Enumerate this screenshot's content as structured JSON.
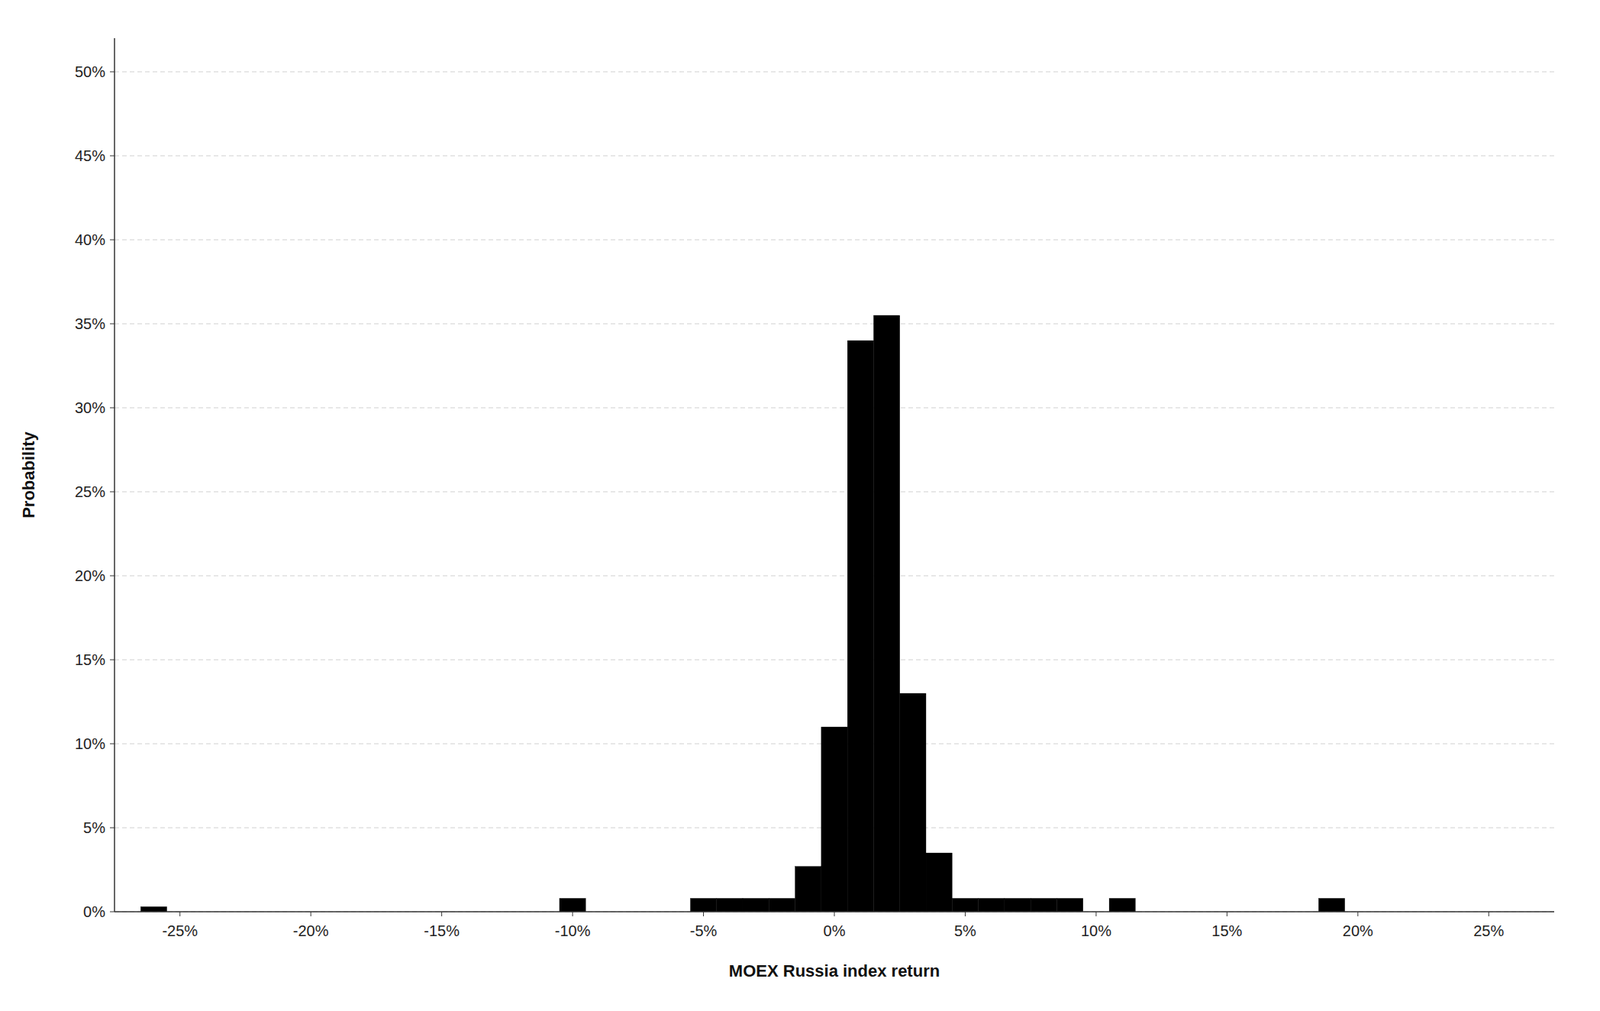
{
  "chart_data": {
    "type": "histogram",
    "xlabel": "MOEX Russia index return",
    "ylabel": "Probability",
    "color": "#000000",
    "grid": true,
    "bins": [
      -0.265,
      -0.255,
      -0.245,
      -0.235,
      -0.225,
      -0.215,
      -0.205,
      -0.195,
      -0.185,
      -0.175,
      -0.165,
      -0.155,
      -0.145,
      -0.135,
      -0.125,
      -0.115,
      -0.105,
      -0.095,
      -0.085,
      -0.075,
      -0.065,
      -0.055,
      -0.045,
      -0.035,
      -0.025,
      -0.015,
      -0.005,
      0.005,
      0.015,
      0.025,
      0.035,
      0.045,
      0.055,
      0.065,
      0.075,
      0.085,
      0.095,
      0.105,
      0.115,
      0.125,
      0.135,
      0.145,
      0.155,
      0.165,
      0.175,
      0.185,
      0.195,
      0.205,
      0.215,
      0.225,
      0.235,
      0.245,
      0.255,
      0.265
    ],
    "values": [
      0.003,
      0.0,
      0.0,
      0.0,
      0.0,
      0.0,
      0.0,
      0.0,
      0.0,
      0.0,
      0.0,
      0.0,
      0.0,
      0.0,
      0.0,
      0.0,
      0.008,
      0.0,
      0.0,
      0.0,
      0.0,
      0.008,
      0.008,
      0.008,
      0.008,
      0.027,
      0.11,
      0.34,
      0.355,
      0.13,
      0.035,
      0.008,
      0.008,
      0.008,
      0.008,
      0.008,
      0.0,
      0.008,
      0.0,
      0.0,
      0.0,
      0.0,
      0.0,
      0.0,
      0.0,
      0.008,
      0.0,
      0.0,
      0.0,
      0.0,
      0.0,
      0.0,
      0.0
    ],
    "xlim": [
      -0.275,
      0.275
    ],
    "ylim": [
      0,
      0.52
    ],
    "xticks": [
      {
        "value": -0.25,
        "label": "-25%"
      },
      {
        "value": -0.2,
        "label": "-20%"
      },
      {
        "value": -0.15,
        "label": "-15%"
      },
      {
        "value": -0.1,
        "label": "-10%"
      },
      {
        "value": -0.05,
        "label": "-5%"
      },
      {
        "value": 0.0,
        "label": "0%"
      },
      {
        "value": 0.05,
        "label": "5%"
      },
      {
        "value": 0.1,
        "label": "10%"
      },
      {
        "value": 0.15,
        "label": "15%"
      },
      {
        "value": 0.2,
        "label": "20%"
      },
      {
        "value": 0.25,
        "label": "25%"
      }
    ],
    "yticks": [
      {
        "value": 0.0,
        "label": "0%"
      },
      {
        "value": 0.05,
        "label": "5%"
      },
      {
        "value": 0.1,
        "label": "10%"
      },
      {
        "value": 0.15,
        "label": "15%"
      },
      {
        "value": 0.2,
        "label": "20%"
      },
      {
        "value": 0.25,
        "label": "25%"
      },
      {
        "value": 0.3,
        "label": "30%"
      },
      {
        "value": 0.35,
        "label": "35%"
      },
      {
        "value": 0.4,
        "label": "40%"
      },
      {
        "value": 0.45,
        "label": "45%"
      },
      {
        "value": 0.5,
        "label": "50%"
      }
    ]
  }
}
